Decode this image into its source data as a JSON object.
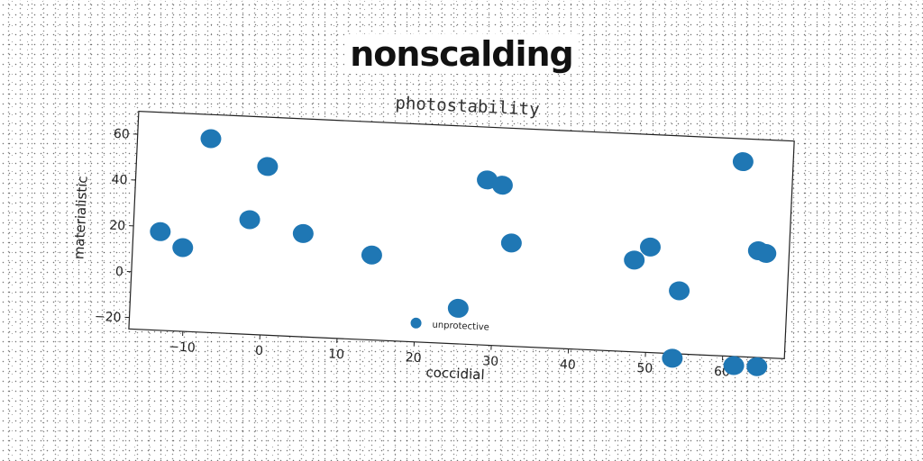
{
  "chart_data": {
    "type": "scatter",
    "title": "nonscalding",
    "subtitle": "photostability",
    "xlabel": "coccidial",
    "ylabel": "materialistic",
    "xlim": [
      -17,
      68
    ],
    "ylim": [
      -25,
      70
    ],
    "xticks": [
      -10,
      0,
      10,
      20,
      30,
      40,
      50,
      60
    ],
    "yticks": [
      -20,
      0,
      20,
      40,
      60
    ],
    "tick_labels_x": [
      "−10",
      "0",
      "10",
      "20",
      "30",
      "40",
      "50",
      "60"
    ],
    "tick_labels_y": [
      "−20",
      "0",
      "20",
      "40",
      "60"
    ],
    "grid": false,
    "legend_position": "bottom-center",
    "color": "#1f77b4",
    "series": [
      {
        "name": "unprotective",
        "points": [
          [
            -13.5,
            18
          ],
          [
            -10.5,
            11.5
          ],
          [
            -7.5,
            59.5
          ],
          [
            -2,
            25
          ],
          [
            0,
            48.5
          ],
          [
            5,
            20
          ],
          [
            14,
            12
          ],
          [
            25.5,
            -9.5
          ],
          [
            28.5,
            47
          ],
          [
            30.5,
            45
          ],
          [
            32,
            20
          ],
          [
            48,
            15
          ],
          [
            50,
            21
          ],
          [
            54,
            2.5
          ],
          [
            53.5,
            -27
          ],
          [
            61.5,
            60
          ],
          [
            61.5,
            -29
          ],
          [
            64,
            21.5
          ],
          [
            65,
            20.5
          ],
          [
            64.5,
            -29
          ]
        ]
      }
    ]
  }
}
